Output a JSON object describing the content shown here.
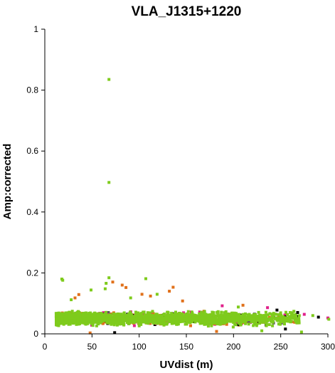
{
  "chart_data": {
    "type": "scatter",
    "title": "VLA_J1315+1220",
    "xlabel": "UVdist (m)",
    "ylabel": "Amp:corrected",
    "xlim": [
      0,
      300
    ],
    "ylim": [
      0,
      1
    ],
    "xticks": [
      "0",
      "50",
      "100",
      "150",
      "200",
      "250",
      "300"
    ],
    "yticks": [
      "0",
      "0.2",
      "0.4",
      "0.6",
      "0.8",
      "1"
    ],
    "grid": false,
    "legend": "none",
    "colors": [
      "#7ecb1c",
      "#e0701a",
      "#e0208a",
      "#000000",
      "#5a5a5a"
    ],
    "bulk": {
      "x_range": [
        12,
        270
      ],
      "y_center": 0.05,
      "y_spread": 0.018,
      "note_color_weights": [
        0.78,
        0.09,
        0.07,
        0.04,
        0.02
      ]
    },
    "outliers": [
      {
        "x": 68,
        "y": 0.835,
        "color": "#7ecb1c"
      },
      {
        "x": 68,
        "y": 0.497,
        "color": "#7ecb1c"
      },
      {
        "x": 18,
        "y": 0.18,
        "color": "#7ecb1c"
      },
      {
        "x": 19,
        "y": 0.176,
        "color": "#7ecb1c"
      },
      {
        "x": 68,
        "y": 0.184,
        "color": "#7ecb1c"
      },
      {
        "x": 107,
        "y": 0.181,
        "color": "#7ecb1c"
      },
      {
        "x": 65,
        "y": 0.166,
        "color": "#7ecb1c"
      },
      {
        "x": 82,
        "y": 0.16,
        "color": "#e0701a"
      },
      {
        "x": 72,
        "y": 0.17,
        "color": "#e0701a"
      },
      {
        "x": 86,
        "y": 0.152,
        "color": "#e0701a"
      },
      {
        "x": 136,
        "y": 0.153,
        "color": "#e0701a"
      },
      {
        "x": 132,
        "y": 0.14,
        "color": "#e0701a"
      },
      {
        "x": 49,
        "y": 0.144,
        "color": "#7ecb1c"
      },
      {
        "x": 64,
        "y": 0.148,
        "color": "#7ecb1c"
      },
      {
        "x": 36,
        "y": 0.129,
        "color": "#e0701a"
      },
      {
        "x": 32,
        "y": 0.118,
        "color": "#e0701a"
      },
      {
        "x": 28,
        "y": 0.112,
        "color": "#7ecb1c"
      },
      {
        "x": 103,
        "y": 0.13,
        "color": "#e0701a"
      },
      {
        "x": 112,
        "y": 0.124,
        "color": "#e0701a"
      },
      {
        "x": 119,
        "y": 0.13,
        "color": "#7ecb1c"
      },
      {
        "x": 91,
        "y": 0.118,
        "color": "#7ecb1c"
      },
      {
        "x": 146,
        "y": 0.108,
        "color": "#e0701a"
      },
      {
        "x": 188,
        "y": 0.092,
        "color": "#e0208a"
      },
      {
        "x": 210,
        "y": 0.094,
        "color": "#e0701a"
      },
      {
        "x": 205,
        "y": 0.088,
        "color": "#7ecb1c"
      },
      {
        "x": 236,
        "y": 0.086,
        "color": "#e0208a"
      },
      {
        "x": 246,
        "y": 0.078,
        "color": "#000000"
      },
      {
        "x": 268,
        "y": 0.07,
        "color": "#000000"
      },
      {
        "x": 264,
        "y": 0.074,
        "color": "#7ecb1c"
      },
      {
        "x": 275,
        "y": 0.064,
        "color": "#e0208a"
      },
      {
        "x": 284,
        "y": 0.06,
        "color": "#7ecb1c"
      },
      {
        "x": 290,
        "y": 0.055,
        "color": "#000000"
      },
      {
        "x": 300,
        "y": 0.052,
        "color": "#e0208a"
      },
      {
        "x": 301,
        "y": 0.048,
        "color": "#7ecb1c"
      },
      {
        "x": 272,
        "y": 0.006,
        "color": "#7ecb1c"
      },
      {
        "x": 255,
        "y": 0.016,
        "color": "#000000"
      },
      {
        "x": 230,
        "y": 0.01,
        "color": "#7ecb1c"
      },
      {
        "x": 182,
        "y": 0.008,
        "color": "#e0701a"
      },
      {
        "x": 74,
        "y": 0.004,
        "color": "#000000"
      },
      {
        "x": 48,
        "y": 0.003,
        "color": "#e0701a"
      }
    ]
  }
}
